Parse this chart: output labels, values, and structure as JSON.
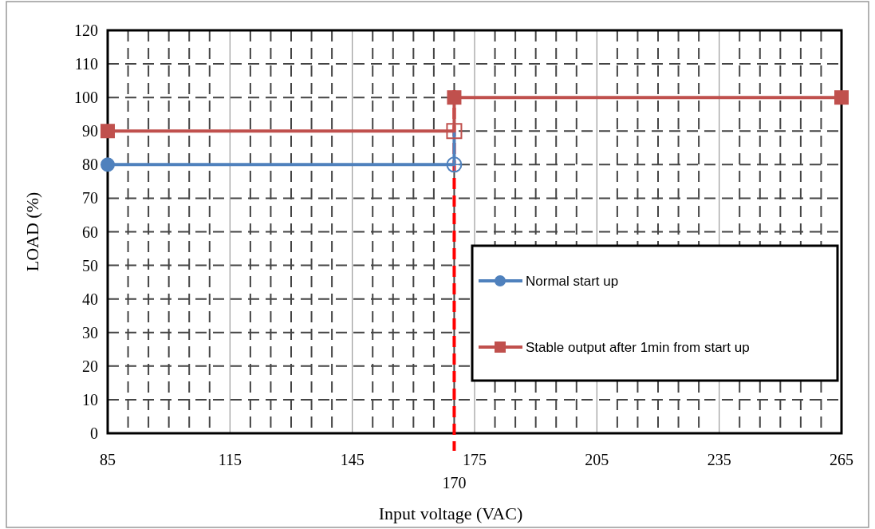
{
  "chart_data": {
    "type": "line",
    "xlabel": "Input voltage (VAC)",
    "ylabel": "LOAD (%)",
    "xlim": [
      85,
      265
    ],
    "xticks": [
      85,
      115,
      145,
      175,
      205,
      235,
      265
    ],
    "ylim": [
      0,
      120
    ],
    "yticks": [
      0,
      10,
      20,
      30,
      40,
      50,
      60,
      70,
      80,
      90,
      100,
      110,
      120
    ],
    "grid": true,
    "legend": "right",
    "line_style": "solid",
    "series": [
      {
        "name": "Normal start up",
        "color": "#4f81bd",
        "marker": "circle",
        "x": [
          85,
          170,
          170
        ],
        "values": [
          80,
          80,
          90
        ]
      },
      {
        "name": "Stable output after 1min from start up",
        "color": "#c0504d",
        "marker": "square",
        "x": [
          85,
          170,
          170,
          265
        ],
        "values": [
          90,
          90,
          100,
          100
        ]
      }
    ],
    "ref_lines": [
      {
        "axis": "x",
        "value": 170,
        "label": "170",
        "color": "#ff0000",
        "line_style": "dashed"
      }
    ]
  }
}
